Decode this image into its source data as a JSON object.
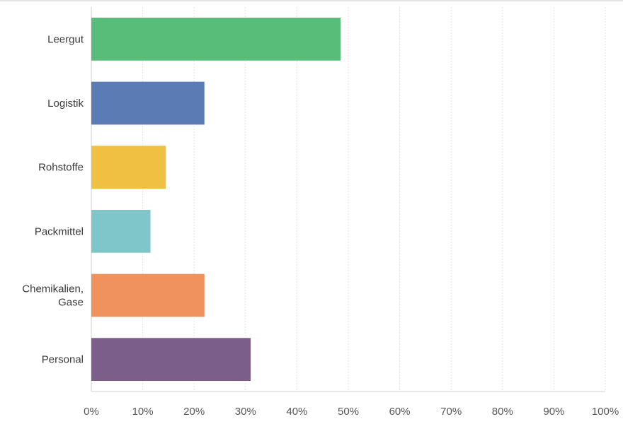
{
  "chart_data": {
    "type": "bar",
    "orientation": "horizontal",
    "categories": [
      "Leergut",
      "Logistik",
      "Rohstoffe",
      "Packmittel",
      "Chemikalien, Gase",
      "Personal"
    ],
    "category_lines": [
      [
        "Leergut"
      ],
      [
        "Logistik"
      ],
      [
        "Rohstoffe"
      ],
      [
        "Packmittel"
      ],
      [
        "Chemikalien,",
        "Gase"
      ],
      [
        "Personal"
      ]
    ],
    "values": [
      48.5,
      22,
      14.5,
      11.5,
      22,
      31
    ],
    "colors": [
      "#57bd78",
      "#5b7bb5",
      "#efc042",
      "#7fc6cb",
      "#f0925e",
      "#7b5f8a"
    ],
    "xlim": [
      0,
      100
    ],
    "xticks": [
      0,
      10,
      20,
      30,
      40,
      50,
      60,
      70,
      80,
      90,
      100
    ],
    "xtick_labels": [
      "0%",
      "10%",
      "20%",
      "30%",
      "40%",
      "50%",
      "60%",
      "70%",
      "80%",
      "90%",
      "100%"
    ],
    "grid": true,
    "title": "",
    "xlabel": "",
    "ylabel": ""
  }
}
